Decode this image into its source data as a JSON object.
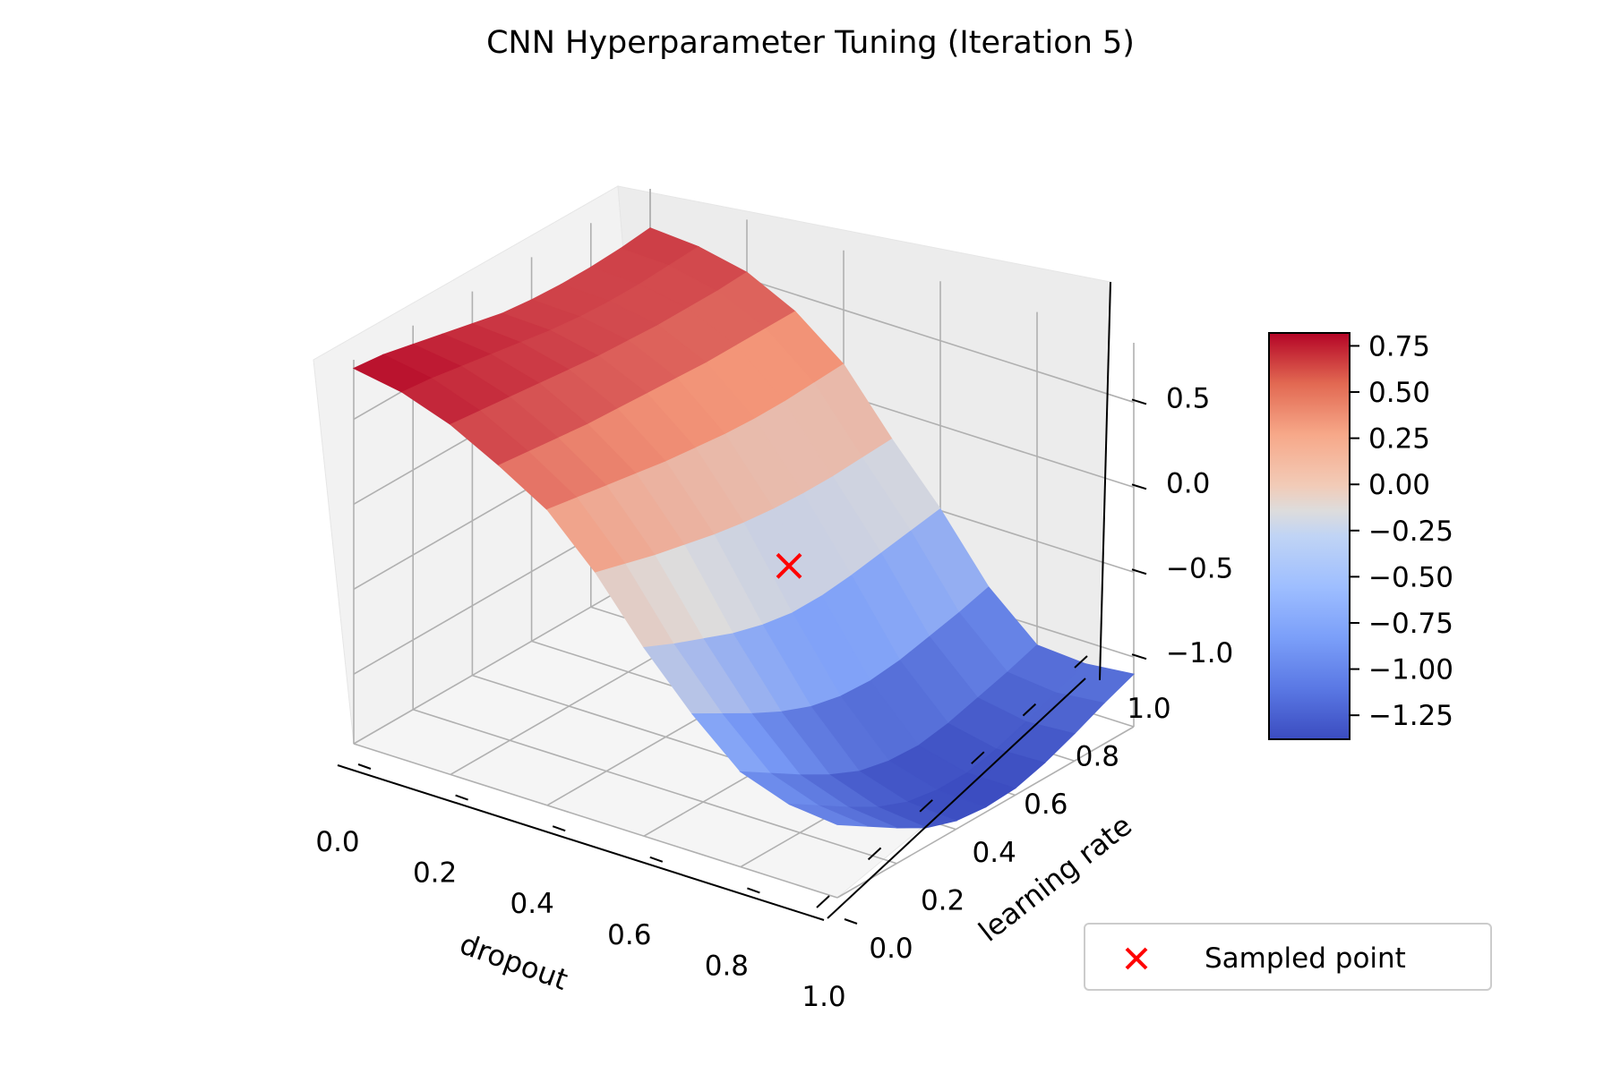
{
  "chart_data": {
    "type": "surface",
    "title": "CNN Hyperparameter Tuning (Iteration 5)",
    "xlabel": "dropout",
    "ylabel": "learning rate",
    "zlabel": "",
    "xlim": [
      0,
      1
    ],
    "ylim": [
      0,
      1
    ],
    "zlim": [
      -1.41,
      0.85
    ],
    "x_ticks": [
      "0.0",
      "0.2",
      "0.4",
      "0.6",
      "0.8",
      "1.0"
    ],
    "y_ticks": [
      "0.0",
      "0.2",
      "0.4",
      "0.6",
      "0.8",
      "1.0"
    ],
    "z_ticks": [
      "0.5",
      "0.0",
      "−0.5",
      "−1.0"
    ],
    "z_tick_values": [
      0.5,
      0.0,
      -0.5,
      -1.0
    ],
    "colormap": "coolwarm",
    "colorbar": {
      "ticks": [
        "0.75",
        "0.50",
        "0.25",
        "0.00",
        "−0.25",
        "−0.50",
        "−0.75",
        "−1.00",
        "−1.25"
      ],
      "tick_values": [
        0.75,
        0.5,
        0.25,
        0.0,
        -0.25,
        -0.5,
        -0.75,
        -1.0,
        -1.25
      ],
      "range": [
        -1.38,
        0.82
      ]
    },
    "surface": {
      "x": [
        0.0,
        0.1,
        0.2,
        0.3,
        0.4,
        0.5,
        0.6,
        0.7,
        0.8,
        0.9,
        1.0
      ],
      "y": [
        0.0,
        0.1,
        0.2,
        0.3,
        0.4,
        0.5,
        0.6,
        0.7,
        0.8,
        0.9,
        1.0
      ],
      "z": [
        [
          0.8,
          0.78,
          0.74,
          0.7,
          0.66,
          0.62,
          0.6,
          0.59,
          0.59,
          0.6,
          0.62
        ],
        [
          0.75,
          0.73,
          0.7,
          0.67,
          0.64,
          0.61,
          0.59,
          0.58,
          0.58,
          0.59,
          0.6
        ],
        [
          0.65,
          0.63,
          0.61,
          0.59,
          0.57,
          0.55,
          0.54,
          0.53,
          0.53,
          0.53,
          0.54
        ],
        [
          0.5,
          0.48,
          0.46,
          0.44,
          0.43,
          0.42,
          0.41,
          0.4,
          0.4,
          0.4,
          0.4
        ],
        [
          0.33,
          0.3,
          0.27,
          0.24,
          0.21,
          0.19,
          0.17,
          0.16,
          0.16,
          0.17,
          0.18
        ],
        [
          0.05,
          0.0,
          -0.05,
          -0.09,
          -0.13,
          -0.16,
          -0.18,
          -0.19,
          -0.19,
          -0.18,
          -0.17
        ],
        [
          -0.3,
          -0.38,
          -0.45,
          -0.52,
          -0.57,
          -0.6,
          -0.6,
          -0.58,
          -0.55,
          -0.52,
          -0.49
        ],
        [
          -0.6,
          -0.7,
          -0.8,
          -0.89,
          -0.96,
          -1.0,
          -1.01,
          -0.99,
          -0.95,
          -0.91,
          -0.86
        ],
        [
          -0.85,
          -0.96,
          -1.07,
          -1.17,
          -1.25,
          -1.29,
          -1.3,
          -1.27,
          -1.22,
          -1.17,
          -1.11
        ],
        [
          -0.95,
          -1.06,
          -1.17,
          -1.27,
          -1.34,
          -1.37,
          -1.37,
          -1.33,
          -1.27,
          -1.2,
          -1.13
        ],
        [
          -0.98,
          -1.09,
          -1.2,
          -1.3,
          -1.36,
          -1.38,
          -1.37,
          -1.32,
          -1.25,
          -1.17,
          -1.1
        ]
      ]
    },
    "sampled_points": [
      {
        "x": 0.33,
        "y": 0.93,
        "z": -1.0
      }
    ],
    "legend": {
      "position": "lower-right",
      "entries": [
        {
          "label": "Sampled point",
          "marker": "x",
          "color": "#ff0000"
        }
      ]
    }
  }
}
